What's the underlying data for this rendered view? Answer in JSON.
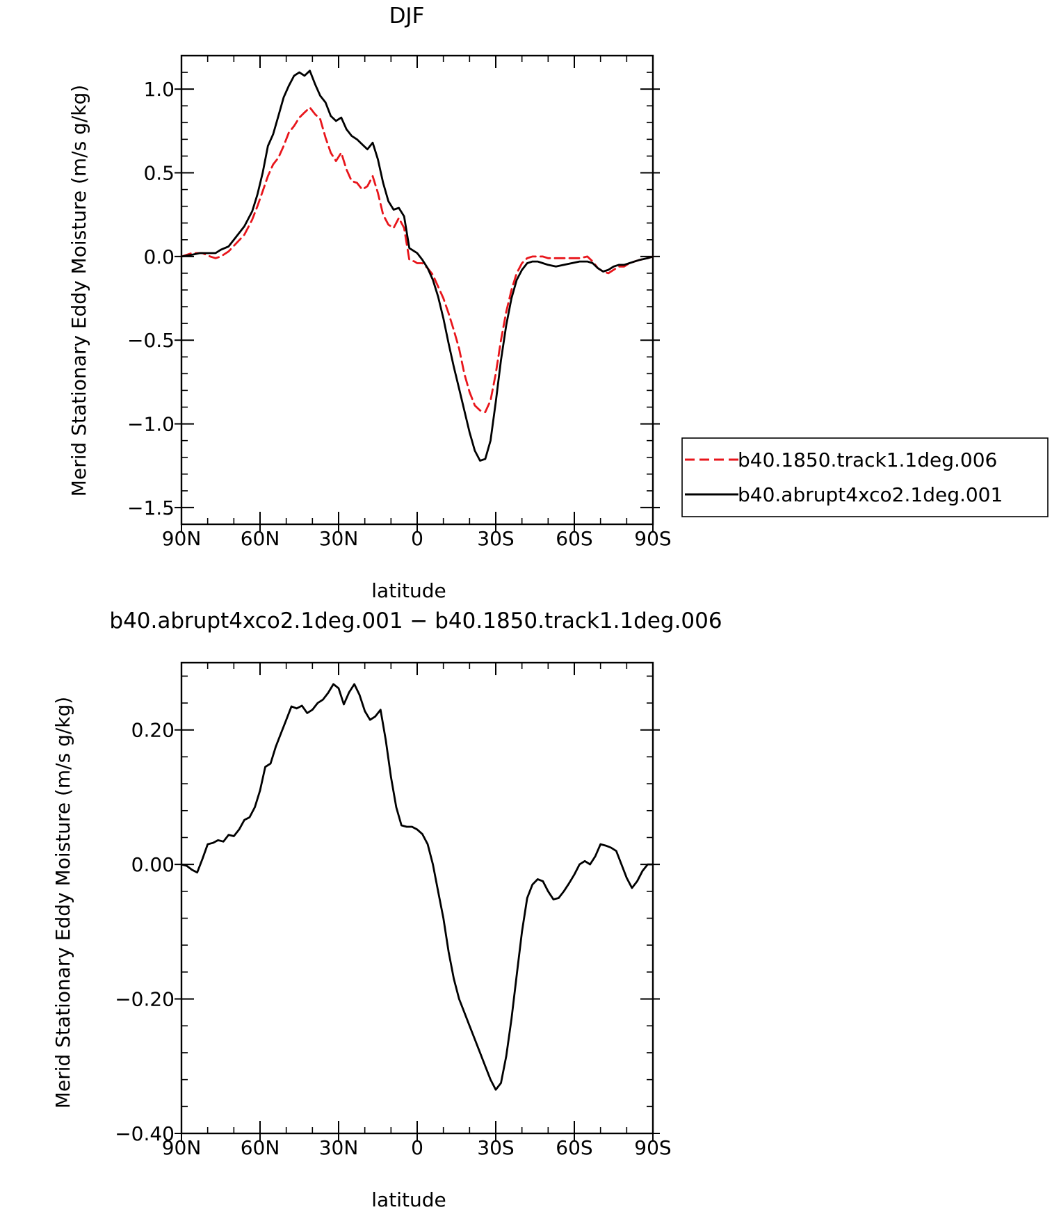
{
  "chart_data": [
    {
      "type": "line",
      "title": "DJF",
      "xlabel": "latitude",
      "ylabel": "Merid Stationary Eddy Moisture (m/s g/kg)",
      "xlim": [
        90,
        -90
      ],
      "ylim": [
        -1.6,
        1.2
      ],
      "xticks": [
        90,
        60,
        30,
        0,
        -30,
        -60,
        -90
      ],
      "xtick_labels": [
        "90N",
        "60N",
        "30N",
        "0",
        "30S",
        "60S",
        "90S"
      ],
      "yticks": [
        1.0,
        0.5,
        0.0,
        -0.5,
        -1.0,
        -1.5
      ],
      "ytick_labels": [
        "1.0",
        "0.5",
        "0.0",
        "−0.5",
        "−1.0",
        "−1.5"
      ],
      "legend_position": "right",
      "series": [
        {
          "name": "b40.1850.track1.1deg.006",
          "color": "#e8151b",
          "dash": "dashed",
          "x": [
            90,
            86,
            82,
            79,
            77,
            75,
            72,
            69,
            66,
            63,
            61,
            59,
            57,
            55,
            53,
            51,
            49,
            47,
            45,
            43,
            41,
            39,
            37,
            35,
            33,
            31,
            29,
            27,
            25,
            23,
            21,
            19,
            17,
            15,
            13,
            11,
            9,
            7,
            5,
            3,
            1,
            0,
            -2,
            -4,
            -6,
            -8,
            -10,
            -12,
            -14,
            -16,
            -18,
            -20,
            -22,
            -24,
            -26,
            -28,
            -30,
            -32,
            -34,
            -36,
            -38,
            -40,
            -42,
            -44,
            -46,
            -48,
            -50,
            -52,
            -55,
            -58,
            -62,
            -65,
            -67,
            -69,
            -71,
            -73,
            -75,
            -77,
            -79,
            -81,
            -83,
            -85,
            -88,
            -90
          ],
          "y": [
            0.0,
            0.02,
            0.02,
            0.0,
            -0.01,
            0.0,
            0.03,
            0.08,
            0.13,
            0.22,
            0.3,
            0.39,
            0.48,
            0.55,
            0.59,
            0.66,
            0.74,
            0.78,
            0.83,
            0.86,
            0.89,
            0.85,
            0.82,
            0.71,
            0.62,
            0.57,
            0.62,
            0.52,
            0.45,
            0.44,
            0.4,
            0.42,
            0.48,
            0.38,
            0.25,
            0.19,
            0.17,
            0.23,
            0.17,
            -0.02,
            -0.03,
            -0.04,
            -0.04,
            -0.07,
            -0.11,
            -0.18,
            -0.25,
            -0.34,
            -0.44,
            -0.55,
            -0.7,
            -0.81,
            -0.89,
            -0.92,
            -0.93,
            -0.86,
            -0.7,
            -0.5,
            -0.33,
            -0.2,
            -0.1,
            -0.04,
            -0.01,
            0.0,
            0.0,
            0.0,
            -0.01,
            -0.01,
            -0.01,
            -0.01,
            -0.01,
            0.0,
            -0.03,
            -0.07,
            -0.09,
            -0.1,
            -0.08,
            -0.06,
            -0.06,
            -0.04,
            -0.03,
            -0.02,
            -0.01,
            0.0
          ]
        },
        {
          "name": "b40.abrupt4xco2.1deg.001",
          "color": "#000000",
          "dash": "solid",
          "x": [
            90,
            86,
            83,
            80,
            77,
            75,
            72,
            69,
            66,
            63,
            61,
            59,
            57,
            55,
            53,
            51,
            49,
            47,
            45,
            43,
            41,
            39,
            37,
            35,
            33,
            31,
            29,
            27,
            25,
            23,
            21,
            19,
            17,
            15,
            13,
            11,
            9,
            7,
            5,
            3,
            1,
            0,
            -2,
            -4,
            -6,
            -8,
            -10,
            -12,
            -14,
            -16,
            -18,
            -20,
            -22,
            -24,
            -26,
            -28,
            -30,
            -32,
            -34,
            -36,
            -38,
            -40,
            -42,
            -44,
            -46,
            -48,
            -50,
            -53,
            -56,
            -59,
            -62,
            -65,
            -67,
            -69,
            -71,
            -73,
            -75,
            -77,
            -79,
            -81,
            -83,
            -85,
            -88,
            -90
          ],
          "y": [
            0.0,
            0.01,
            0.02,
            0.02,
            0.02,
            0.04,
            0.06,
            0.12,
            0.18,
            0.27,
            0.37,
            0.5,
            0.66,
            0.73,
            0.84,
            0.95,
            1.02,
            1.08,
            1.1,
            1.08,
            1.11,
            1.03,
            0.96,
            0.92,
            0.84,
            0.81,
            0.83,
            0.76,
            0.72,
            0.7,
            0.67,
            0.64,
            0.68,
            0.58,
            0.44,
            0.33,
            0.28,
            0.29,
            0.24,
            0.05,
            0.03,
            0.02,
            -0.02,
            -0.07,
            -0.14,
            -0.24,
            -0.37,
            -0.52,
            -0.66,
            -0.79,
            -0.92,
            -1.05,
            -1.16,
            -1.22,
            -1.21,
            -1.1,
            -0.87,
            -0.62,
            -0.41,
            -0.25,
            -0.14,
            -0.08,
            -0.04,
            -0.03,
            -0.03,
            -0.04,
            -0.05,
            -0.06,
            -0.05,
            -0.04,
            -0.03,
            -0.03,
            -0.04,
            -0.07,
            -0.09,
            -0.08,
            -0.06,
            -0.05,
            -0.05,
            -0.04,
            -0.03,
            -0.02,
            -0.01,
            0.0
          ]
        }
      ]
    },
    {
      "type": "line",
      "title": "b40.abrupt4xco2.1deg.001 − b40.1850.track1.1deg.006",
      "xlabel": "latitude",
      "ylabel": "Merid Stationary Eddy Moisture (m/s g/kg)",
      "xlim": [
        90,
        -90
      ],
      "ylim": [
        -0.4,
        0.3
      ],
      "xticks": [
        90,
        60,
        30,
        0,
        -30,
        -60,
        -90
      ],
      "xtick_labels": [
        "90N",
        "60N",
        "30N",
        "0",
        "30S",
        "60S",
        "90S"
      ],
      "yticks": [
        0.2,
        0.0,
        -0.2,
        -0.4
      ],
      "ytick_labels": [
        "0.20",
        "0.00",
        "−0.20",
        "−0.40"
      ],
      "series": [
        {
          "color": "#000000",
          "dash": "solid",
          "x": [
            90,
            88,
            86,
            84,
            82,
            80,
            78,
            76,
            74,
            72,
            70,
            68,
            66,
            64,
            62,
            60,
            58,
            56,
            54,
            52,
            50,
            48,
            46,
            44,
            42,
            40,
            38,
            36,
            34,
            32,
            30,
            28,
            26,
            24,
            22,
            20,
            18,
            16,
            14,
            12,
            10,
            8,
            6,
            4,
            2,
            0,
            -2,
            -4,
            -6,
            -8,
            -10,
            -12,
            -14,
            -16,
            -18,
            -20,
            -22,
            -24,
            -26,
            -28,
            -30,
            -32,
            -34,
            -36,
            -38,
            -40,
            -42,
            -44,
            -46,
            -48,
            -50,
            -52,
            -54,
            -56,
            -58,
            -60,
            -62,
            -64,
            -66,
            -68,
            -70,
            -72,
            -74,
            -76,
            -78,
            -80,
            -82,
            -84,
            -86,
            -88,
            -90
          ],
          "y": [
            0.0,
            -0.002,
            -0.008,
            -0.012,
            0.008,
            0.03,
            0.032,
            0.036,
            0.034,
            0.044,
            0.042,
            0.052,
            0.066,
            0.07,
            0.085,
            0.11,
            0.145,
            0.15,
            0.175,
            0.195,
            0.215,
            0.235,
            0.232,
            0.236,
            0.225,
            0.23,
            0.24,
            0.245,
            0.255,
            0.268,
            0.262,
            0.238,
            0.256,
            0.268,
            0.252,
            0.228,
            0.215,
            0.22,
            0.23,
            0.185,
            0.13,
            0.085,
            0.058,
            0.056,
            0.056,
            0.052,
            0.045,
            0.03,
            0.0,
            -0.04,
            -0.08,
            -0.13,
            -0.17,
            -0.2,
            -0.22,
            -0.24,
            -0.26,
            -0.28,
            -0.3,
            -0.32,
            -0.335,
            -0.325,
            -0.285,
            -0.23,
            -0.165,
            -0.1,
            -0.05,
            -0.03,
            -0.022,
            -0.025,
            -0.04,
            -0.052,
            -0.05,
            -0.04,
            -0.028,
            -0.015,
            0.0,
            0.005,
            0.0,
            0.012,
            0.03,
            0.028,
            0.025,
            0.02,
            0.0,
            -0.02,
            -0.035,
            -0.025,
            -0.01,
            0.0,
            0.0
          ]
        }
      ]
    }
  ]
}
